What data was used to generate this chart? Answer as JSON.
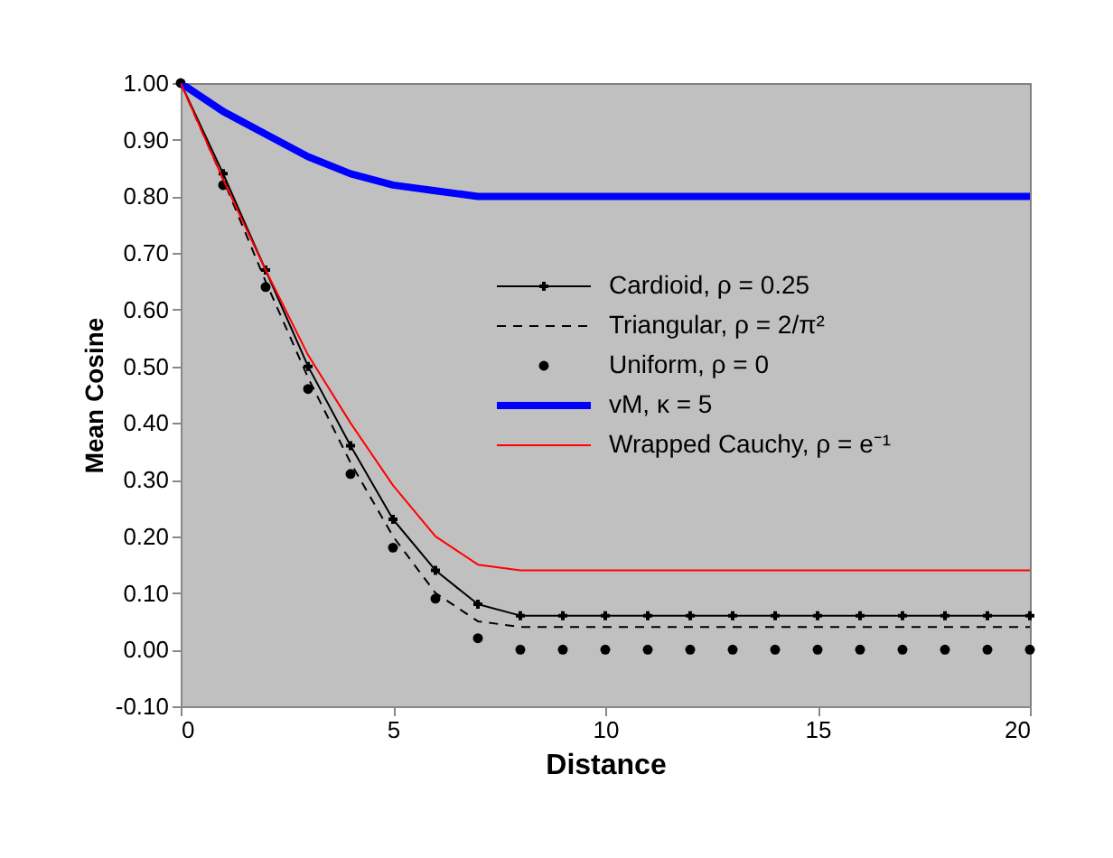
{
  "chart_data": {
    "type": "line",
    "xlabel": "Distance",
    "ylabel": "Mean Cosine",
    "xlim": [
      0,
      20
    ],
    "xticks": [
      0,
      5,
      10,
      15,
      20
    ],
    "ylim": [
      -0.1,
      1.0
    ],
    "yticks": [
      {
        "value": -0.1,
        "label": "-0.10"
      },
      {
        "value": 0,
        "label": "0.00"
      },
      {
        "value": 0.1,
        "label": "0.10"
      },
      {
        "value": 0.2,
        "label": "0.20"
      },
      {
        "value": 0.3,
        "label": "0.30"
      },
      {
        "value": 0.4,
        "label": "0.40"
      },
      {
        "value": 0.5,
        "label": "0.50"
      },
      {
        "value": 0.6,
        "label": "0.60"
      },
      {
        "value": 0.7,
        "label": "0.70"
      },
      {
        "value": 0.8,
        "label": "0.80"
      },
      {
        "value": 0.9,
        "label": "0.90"
      },
      {
        "value": 1.0,
        "label": "1.00"
      }
    ],
    "grid": false,
    "legend": "right",
    "series": [
      {
        "name": "Cardioid, ρ = 0.25",
        "color": "#000000",
        "marker": "cross",
        "line_style": "solid",
        "x": [
          0,
          1,
          2,
          3,
          4,
          5,
          6,
          7,
          8,
          9,
          10,
          11,
          12,
          13,
          14,
          15,
          16,
          17,
          18,
          19,
          20
        ],
        "values": [
          1.0,
          0.84,
          0.67,
          0.5,
          0.36,
          0.23,
          0.14,
          0.08,
          0.06,
          0.06,
          0.06,
          0.06,
          0.06,
          0.06,
          0.06,
          0.06,
          0.06,
          0.06,
          0.06,
          0.06,
          0.06
        ]
      },
      {
        "name": "Triangular, ρ = 2/π²",
        "color": "#000000",
        "marker": "none",
        "line_style": "dashed",
        "x": [
          0,
          1,
          2,
          3,
          4,
          5,
          6,
          7,
          8,
          9,
          10,
          11,
          12,
          13,
          14,
          15,
          16,
          17,
          18,
          19,
          20
        ],
        "values": [
          1.0,
          0.83,
          0.65,
          0.48,
          0.33,
          0.2,
          0.1,
          0.05,
          0.04,
          0.04,
          0.04,
          0.04,
          0.04,
          0.04,
          0.04,
          0.04,
          0.04,
          0.04,
          0.04,
          0.04,
          0.04
        ]
      },
      {
        "name": "Uniform, ρ = 0",
        "type": "scatter",
        "color": "#000000",
        "marker": "circle",
        "x": [
          0,
          1,
          2,
          3,
          4,
          5,
          6,
          7,
          8,
          9,
          10,
          11,
          12,
          13,
          14,
          15,
          16,
          17,
          18,
          19,
          20
        ],
        "values": [
          1.0,
          0.82,
          0.64,
          0.46,
          0.31,
          0.18,
          0.09,
          0.02,
          0,
          0,
          0,
          0,
          0,
          0,
          0,
          0,
          0,
          0,
          0,
          0,
          0
        ]
      },
      {
        "name": "vM, κ = 5",
        "color": "#0000ff",
        "marker": "none",
        "line_style": "solid",
        "x": [
          0,
          1,
          2,
          3,
          4,
          5,
          6,
          7,
          8,
          9,
          10,
          11,
          12,
          13,
          14,
          15,
          16,
          17,
          18,
          19,
          20
        ],
        "values": [
          1.0,
          0.95,
          0.91,
          0.87,
          0.84,
          0.82,
          0.81,
          0.8,
          0.8,
          0.8,
          0.8,
          0.8,
          0.8,
          0.8,
          0.8,
          0.8,
          0.8,
          0.8,
          0.8,
          0.8,
          0.8
        ]
      },
      {
        "name": "Wrapped Cauchy, ρ = e⁻¹",
        "color": "#ff0000",
        "marker": "none",
        "line_style": "solid",
        "x": [
          0,
          1,
          2,
          3,
          4,
          5,
          6,
          7,
          8,
          9,
          10,
          11,
          12,
          13,
          14,
          15,
          16,
          17,
          18,
          19,
          20
        ],
        "values": [
          1.0,
          0.83,
          0.67,
          0.52,
          0.4,
          0.29,
          0.2,
          0.15,
          0.14,
          0.14,
          0.14,
          0.14,
          0.14,
          0.14,
          0.14,
          0.14,
          0.14,
          0.14,
          0.14,
          0.14,
          0.14
        ]
      }
    ]
  }
}
